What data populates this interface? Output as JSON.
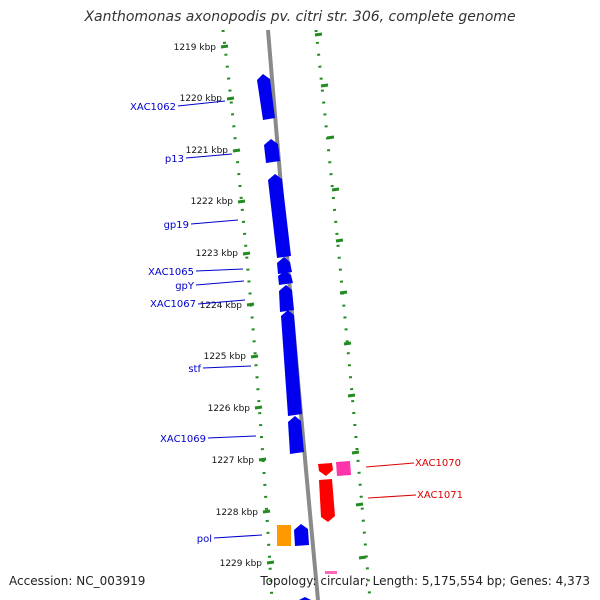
{
  "header": {
    "title": "Xanthomonas axonopodis pv. citri str. 306, complete genome"
  },
  "footer": {
    "accession": "Accession: NC_003919",
    "summary": "Topology: circular; Length: 5,175,554 bp; Genes: 4,373"
  },
  "colors": {
    "forward_gene": "#0000ee",
    "reverse_gene": "#ff0000",
    "pink_gene": "#ff33aa",
    "orange_gene": "#ff9900",
    "backbone": "#8a8a8a",
    "dotted_track": "#228b22",
    "forward_label": "#0000cc",
    "reverse_label": "#dd0000"
  },
  "kbp_ticks": [
    "1219 kbp",
    "1220 kbp",
    "1221 kbp",
    "1222 kbp",
    "1223 kbp",
    "1224 kbp",
    "1225 kbp",
    "1226 kbp",
    "1227 kbp",
    "1228 kbp",
    "1229 kbp"
  ],
  "genes_forward": [
    "XAC1062",
    "p13",
    "gp19",
    "XAC1065",
    "gpY",
    "XAC1067",
    "stf",
    "XAC1069",
    "pol"
  ],
  "genes_reverse": [
    "XAC1070",
    "XAC1071"
  ]
}
